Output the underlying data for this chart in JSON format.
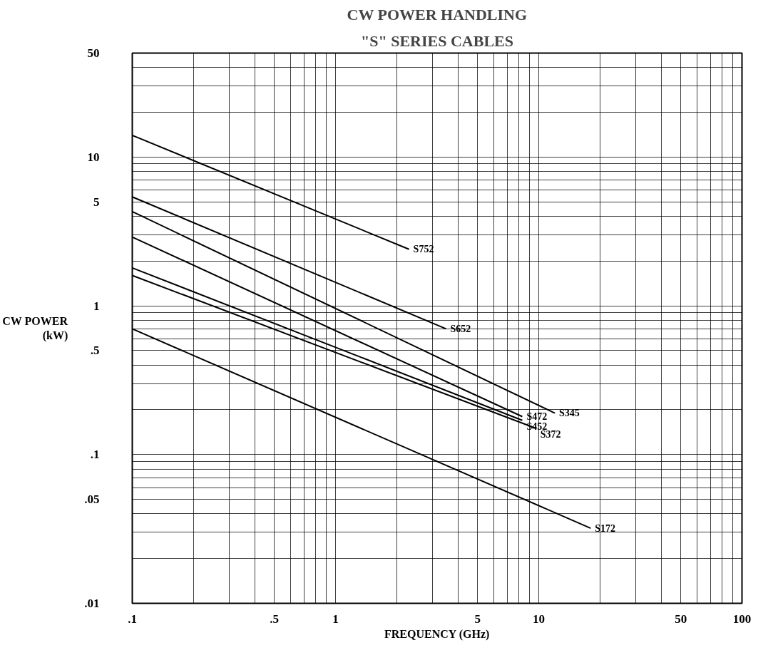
{
  "chart_data": {
    "type": "line",
    "title": "CW POWER HANDLING",
    "subtitle": "\"S\" SERIES CABLES",
    "xlabel": "FREQUENCY (GHz)",
    "ylabel": "CW POWER\n(kW)",
    "log": "xy",
    "grid": true,
    "marker": "none",
    "line_style": "solid",
    "xlim": [
      0.1,
      100
    ],
    "ylim": [
      0.01,
      50
    ],
    "xticks": [
      {
        "value": 0.1,
        "label": ".1"
      },
      {
        "value": 0.2,
        "label": null
      },
      {
        "value": 0.3,
        "label": null
      },
      {
        "value": 0.4,
        "label": null
      },
      {
        "value": 0.5,
        "label": ".5"
      },
      {
        "value": 0.6,
        "label": null
      },
      {
        "value": 0.7,
        "label": null
      },
      {
        "value": 0.8,
        "label": null
      },
      {
        "value": 0.9,
        "label": null
      },
      1,
      {
        "value": 2,
        "label": null
      },
      {
        "value": 3,
        "label": null
      },
      {
        "value": 4,
        "label": null
      },
      5,
      {
        "value": 6,
        "label": null
      },
      {
        "value": 7,
        "label": null
      },
      {
        "value": 8,
        "label": null
      },
      {
        "value": 9,
        "label": null
      },
      10,
      {
        "value": 20,
        "label": null
      },
      {
        "value": 30,
        "label": null
      },
      {
        "value": 40,
        "label": null
      },
      50,
      {
        "value": 60,
        "label": null
      },
      {
        "value": 70,
        "label": null
      },
      {
        "value": 80,
        "label": null
      },
      {
        "value": 90,
        "label": null
      },
      100
    ],
    "yticks": [
      {
        "value": 0.01,
        "label": ".01"
      },
      {
        "value": 0.02,
        "label": null
      },
      {
        "value": 0.03,
        "label": null
      },
      {
        "value": 0.04,
        "label": null
      },
      {
        "value": 0.05,
        "label": ".05"
      },
      {
        "value": 0.06,
        "label": null
      },
      {
        "value": 0.07,
        "label": null
      },
      {
        "value": 0.08,
        "label": null
      },
      {
        "value": 0.09,
        "label": null
      },
      {
        "value": 0.1,
        "label": ".1"
      },
      {
        "value": 0.2,
        "label": null
      },
      {
        "value": 0.3,
        "label": null
      },
      {
        "value": 0.4,
        "label": null
      },
      {
        "value": 0.5,
        "label": ".5"
      },
      {
        "value": 0.6,
        "label": null
      },
      {
        "value": 0.7,
        "label": null
      },
      {
        "value": 0.8,
        "label": null
      },
      {
        "value": 0.9,
        "label": null
      },
      1,
      {
        "value": 2,
        "label": null
      },
      {
        "value": 3,
        "label": null
      },
      {
        "value": 4,
        "label": null
      },
      5,
      {
        "value": 6,
        "label": null
      },
      {
        "value": 7,
        "label": null
      },
      {
        "value": 8,
        "label": null
      },
      {
        "value": 9,
        "label": null
      },
      10,
      {
        "value": 20,
        "label": null
      },
      {
        "value": 30,
        "label": null
      },
      {
        "value": 40,
        "label": null
      },
      50
    ],
    "series": [
      {
        "name": "S752",
        "color": "#000000",
        "x": [
          0.1,
          2.3
        ],
        "values": [
          14,
          2.4
        ]
      },
      {
        "name": "S652",
        "color": "#000000",
        "x": [
          0.1,
          3.5
        ],
        "values": [
          5.4,
          0.7
        ]
      },
      {
        "name": "S345",
        "color": "#000000",
        "x": [
          0.1,
          12
        ],
        "values": [
          4.3,
          0.19
        ]
      },
      {
        "name": "S472",
        "color": "#000000",
        "x": [
          0.1,
          8.3
        ],
        "values": [
          2.9,
          0.18
        ]
      },
      {
        "name": "S452",
        "color": "#000000",
        "x": [
          0.1,
          8.3
        ],
        "values": [
          1.8,
          0.17
        ]
      },
      {
        "name": "S372",
        "color": "#000000",
        "x": [
          0.1,
          9.7
        ],
        "values": [
          1.6,
          0.15
        ]
      },
      {
        "name": "S172",
        "color": "#000000",
        "x": [
          0.1,
          18
        ],
        "values": [
          0.7,
          0.032
        ]
      }
    ]
  }
}
